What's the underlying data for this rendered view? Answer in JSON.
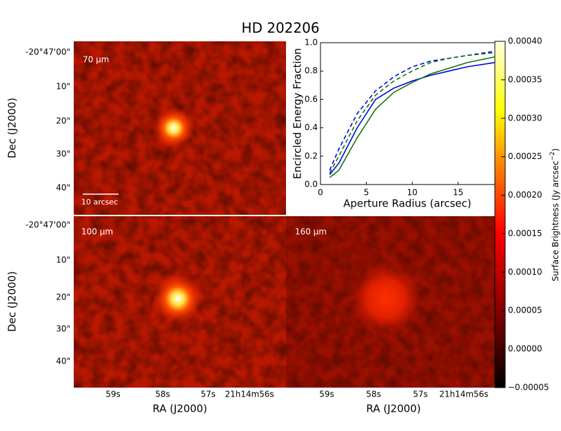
{
  "figure": {
    "title": "HD 202206",
    "panels": [
      "70 μm",
      "100 μm",
      "160 μm"
    ],
    "scale_bar": "10 arcsec",
    "dec_label": "Dec (J2000)",
    "ra_label": "RA (J2000)",
    "dec_ticks": [
      "-20°47'00\"",
      "10\"",
      "20\"",
      "30\"",
      "40\""
    ],
    "ra_ticks": [
      "59s",
      "58s",
      "57s",
      "21h14m56s"
    ]
  },
  "colorbar": {
    "label": "Surface Brightness (Jy arcsec",
    "label_sup": "−2",
    "label_end": ")",
    "lim": [
      -5e-05,
      0.0004
    ],
    "ticks": [
      {
        "value": -5e-05,
        "label": "−0.00005"
      },
      {
        "value": 0,
        "label": "0.00000"
      },
      {
        "value": 5e-05,
        "label": "0.00005"
      },
      {
        "value": 0.0001,
        "label": "0.00010"
      },
      {
        "value": 0.00015,
        "label": "0.00015"
      },
      {
        "value": 0.0002,
        "label": "0.00020"
      },
      {
        "value": 0.00025,
        "label": "0.00025"
      },
      {
        "value": 0.0003,
        "label": "0.00030"
      },
      {
        "value": 0.00035,
        "label": "0.00035"
      },
      {
        "value": 0.0004,
        "label": "0.00040"
      }
    ]
  },
  "chart_data": {
    "type": "line",
    "x_label": "Aperture Radius (arcsec)",
    "y_label": "Encircled Energy Fraction",
    "x": [
      1,
      2,
      4,
      6,
      8,
      10,
      12,
      14,
      16,
      19
    ],
    "series": [
      {
        "color": "#0000dd",
        "dash": true,
        "values": [
          0.1,
          0.25,
          0.5,
          0.66,
          0.76,
          0.83,
          0.87,
          0.89,
          0.91,
          0.94
        ]
      },
      {
        "color": "#107010",
        "dash": true,
        "values": [
          0.08,
          0.2,
          0.45,
          0.63,
          0.73,
          0.8,
          0.86,
          0.89,
          0.91,
          0.93
        ]
      },
      {
        "color": "#0000dd",
        "dash": false,
        "values": [
          0.07,
          0.15,
          0.4,
          0.6,
          0.68,
          0.73,
          0.77,
          0.8,
          0.83,
          0.86
        ]
      },
      {
        "color": "#107010",
        "dash": false,
        "values": [
          0.05,
          0.1,
          0.33,
          0.53,
          0.65,
          0.72,
          0.78,
          0.82,
          0.86,
          0.9
        ]
      }
    ],
    "xlim": [
      0,
      19
    ],
    "ylim": [
      0,
      1
    ],
    "xticks": [
      0,
      5,
      10,
      15
    ],
    "yticks": [
      {
        "value": 0,
        "label": "0.0"
      },
      {
        "value": 0.2,
        "label": "0.2"
      },
      {
        "value": 0.4,
        "label": "0.4"
      },
      {
        "value": 0.6,
        "label": "0.6"
      },
      {
        "value": 0.8,
        "label": "0.8"
      },
      {
        "value": 1,
        "label": "1.0"
      }
    ]
  }
}
